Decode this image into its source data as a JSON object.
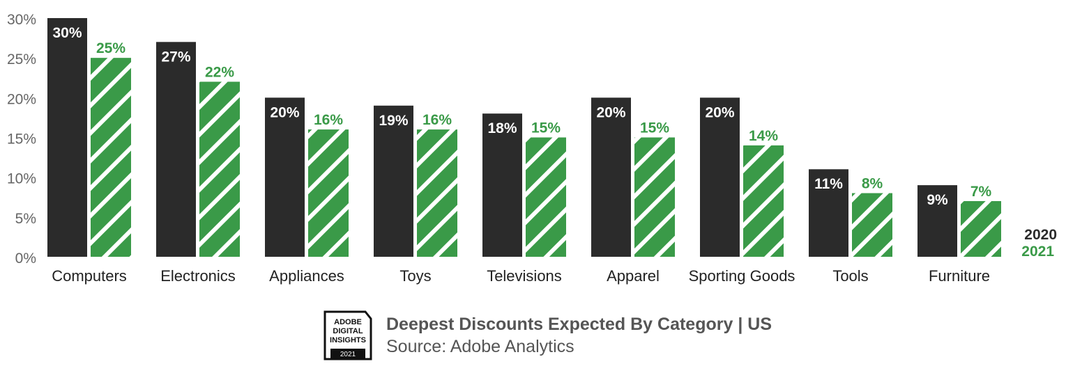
{
  "chart_data": {
    "type": "bar",
    "title": "Deepest Discounts Expected By Category | US",
    "subtitle": "Source: Adobe Analytics",
    "xlabel": "",
    "ylabel": "",
    "ylim": [
      0,
      30
    ],
    "yticks": [
      "0%",
      "5%",
      "10%",
      "15%",
      "20%",
      "25%",
      "30%"
    ],
    "grid": false,
    "legend_position": "bottom-right",
    "categories": [
      "Computers",
      "Electronics",
      "Appliances",
      "Toys",
      "Televisions",
      "Apparel",
      "Sporting Goods",
      "Tools",
      "Furniture"
    ],
    "series": [
      {
        "name": "2020",
        "color": "#2b2b2b",
        "pattern": "solid",
        "values": [
          30,
          27,
          20,
          19,
          18,
          20,
          20,
          11,
          9
        ]
      },
      {
        "name": "2021",
        "color": "#3a9a48",
        "pattern": "diagonal-stripes",
        "values": [
          25,
          22,
          16,
          16,
          15,
          15,
          14,
          8,
          7
        ]
      }
    ],
    "value_suffix": "%"
  },
  "logo": {
    "lines": [
      "ADOBE",
      "DIGITAL",
      "INSIGHTS"
    ],
    "year": "2021"
  }
}
